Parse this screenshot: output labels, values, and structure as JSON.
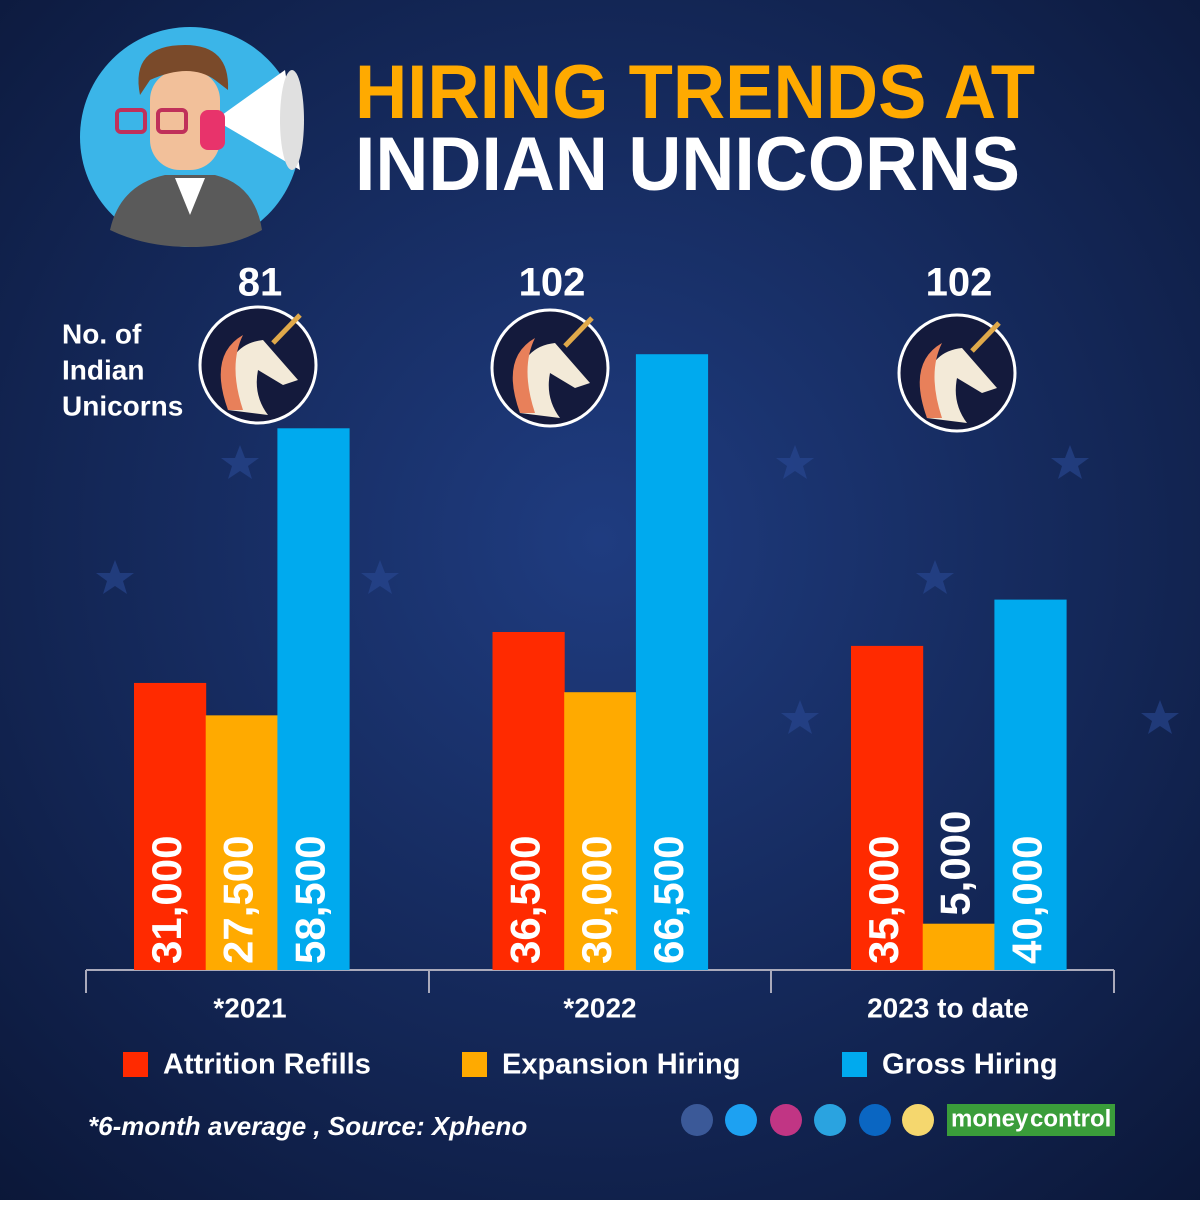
{
  "chart_data": {
    "type": "bar",
    "title_lines": [
      "HIRING TRENDS AT",
      "INDIAN UNICORNS"
    ],
    "categories": [
      "*2021",
      "*2022",
      "2023 to date"
    ],
    "unicorns": {
      "label_lines": [
        "No. of",
        "Indian",
        "Unicorns"
      ],
      "values": [
        81,
        102,
        102
      ]
    },
    "series": [
      {
        "name": "Attrition Refills",
        "color": "#ff2a00",
        "values": [
          31000,
          36500,
          35000
        ],
        "value_labels": [
          "31,000",
          "36,500",
          "35,000"
        ]
      },
      {
        "name": "Expansion Hiring",
        "color": "#ffaa00",
        "values": [
          27500,
          30000,
          5000
        ],
        "value_labels": [
          "27,500",
          "30,000",
          "5,000"
        ]
      },
      {
        "name": "Gross Hiring",
        "color": "#00aaee",
        "values": [
          58500,
          66500,
          40000
        ],
        "value_labels": [
          "58,500",
          "66,500",
          "40,000"
        ]
      }
    ],
    "footnote": "*6-month average , Source: Xpheno",
    "logo": [
      "money",
      "control"
    ]
  }
}
